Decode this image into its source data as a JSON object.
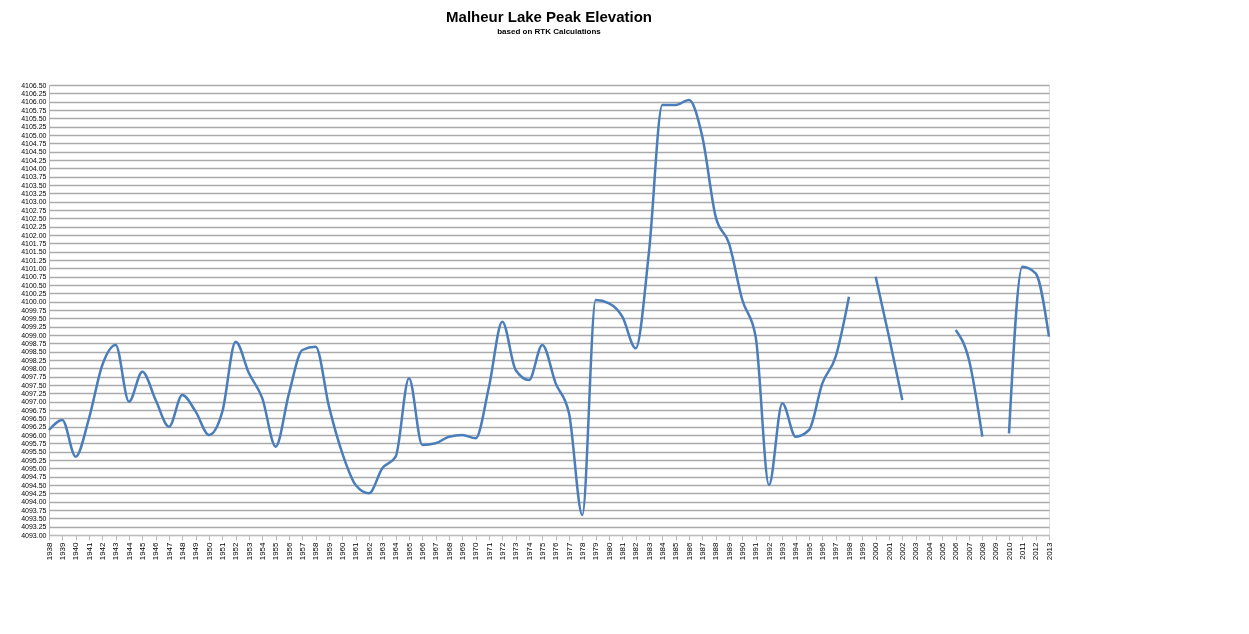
{
  "chart_data": {
    "type": "line",
    "title": "Malheur Lake Peak Elevation",
    "subtitle": "based on RTK Calculations",
    "categories": [
      "1938",
      "1939",
      "1940",
      "1941",
      "1942",
      "1943",
      "1944",
      "1945",
      "1946",
      "1947",
      "1948",
      "1949",
      "1950",
      "1951",
      "1952",
      "1953",
      "1954",
      "1955",
      "1956",
      "1957",
      "1958",
      "1959",
      "1960",
      "1961",
      "1962",
      "1963",
      "1964",
      "1965",
      "1966",
      "1967",
      "1968",
      "1969",
      "1970",
      "1971",
      "1972",
      "1973",
      "1974",
      "1975",
      "1976",
      "1977",
      "1978",
      "1979",
      "1980",
      "1981",
      "1982",
      "1983",
      "1984",
      "1985",
      "1986",
      "1987",
      "1988",
      "1989",
      "1990",
      "1991",
      "1992",
      "1993",
      "1994",
      "1995",
      "1996",
      "1997",
      "1998",
      "1999",
      "2000",
      "2001",
      "2002",
      "2003",
      "2004",
      "2005",
      "2006",
      "2007",
      "2008",
      "2009",
      "2010",
      "2011",
      "2012",
      "2013"
    ],
    "series": [
      {
        "color": "#4a7ebb",
        "values": [
          4096.15,
          4096.45,
          4095.35,
          4096.5,
          4098.1,
          4098.7,
          4097.0,
          4097.9,
          4097.05,
          4096.25,
          4097.2,
          4096.7,
          4096.0,
          4096.7,
          4098.8,
          4097.85,
          4097.1,
          4095.65,
          4097.25,
          4098.55,
          4098.65,
          4096.85,
          4095.45,
          4094.5,
          4094.25,
          4095.0,
          4095.35,
          4097.7,
          4095.7,
          4095.75,
          4095.95,
          4096.0,
          4095.9,
          4097.45,
          4099.4,
          4097.95,
          4097.65,
          4098.7,
          4097.55,
          4096.65,
          4093.6,
          4100.05,
          4099.95,
          4099.55,
          4098.6,
          4101.5,
          4105.9,
          4105.9,
          4106.05,
          4104.95,
          4102.55,
          4101.75,
          4100.05,
          4098.95,
          4094.5,
          4096.95,
          4095.95,
          4096.15,
          4097.55,
          4098.35,
          4100.15,
          null,
          4100.75,
          4098.95,
          4097.05,
          null,
          null,
          null,
          4099.15,
          4098.25,
          4095.95,
          null,
          4096.05,
          4101.05,
          4100.85,
          4098.95
        ]
      }
    ],
    "ylim": [
      4093.0,
      4106.5
    ],
    "yticks": [
      {
        "value": 4093.0,
        "label": "4093.00"
      },
      {
        "value": 4093.25,
        "label": "4093.25"
      },
      {
        "value": 4093.5,
        "label": "4093.50"
      },
      {
        "value": 4093.75,
        "label": "4093.75"
      },
      {
        "value": 4094.0,
        "label": "4094.00"
      },
      {
        "value": 4094.25,
        "label": "4094.25"
      },
      {
        "value": 4094.5,
        "label": "4094.50"
      },
      {
        "value": 4094.75,
        "label": "4094.75"
      },
      {
        "value": 4095.0,
        "label": "4095.00"
      },
      {
        "value": 4095.25,
        "label": "4095.25"
      },
      {
        "value": 4095.5,
        "label": "4095.50"
      },
      {
        "value": 4095.75,
        "label": "4095.75"
      },
      {
        "value": 4096.0,
        "label": "4096.00"
      },
      {
        "value": 4096.25,
        "label": "4096.25"
      },
      {
        "value": 4096.5,
        "label": "4096.50"
      },
      {
        "value": 4096.75,
        "label": "4096.75"
      },
      {
        "value": 4097.0,
        "label": "4097.00"
      },
      {
        "value": 4097.25,
        "label": "4097.25"
      },
      {
        "value": 4097.5,
        "label": "4097.50"
      },
      {
        "value": 4097.75,
        "label": "4097.75"
      },
      {
        "value": 4098.0,
        "label": "4098.00"
      },
      {
        "value": 4098.25,
        "label": "4098.25"
      },
      {
        "value": 4098.5,
        "label": "4098.50"
      },
      {
        "value": 4098.75,
        "label": "4098.75"
      },
      {
        "value": 4099.0,
        "label": "4099.00"
      },
      {
        "value": 4099.25,
        "label": "4099.25"
      },
      {
        "value": 4099.5,
        "label": "4099.50"
      },
      {
        "value": 4099.75,
        "label": "4099.75"
      },
      {
        "value": 4100.0,
        "label": "4100.00"
      },
      {
        "value": 4100.25,
        "label": "4100.25"
      },
      {
        "value": 4100.5,
        "label": "4100.50"
      },
      {
        "value": 4100.75,
        "label": "4100.75"
      },
      {
        "value": 4101.0,
        "label": "4101.00"
      },
      {
        "value": 4101.25,
        "label": "4101.25"
      },
      {
        "value": 4101.5,
        "label": "4101.50"
      },
      {
        "value": 4101.75,
        "label": "4101.75"
      },
      {
        "value": 4102.0,
        "label": "4102.00"
      },
      {
        "value": 4102.25,
        "label": "4102.25"
      },
      {
        "value": 4102.5,
        "label": "4102.50"
      },
      {
        "value": 4102.75,
        "label": "4102.75"
      },
      {
        "value": 4103.0,
        "label": "4103.00"
      },
      {
        "value": 4103.25,
        "label": "4103.25"
      },
      {
        "value": 4103.5,
        "label": "4103.50"
      },
      {
        "value": 4103.75,
        "label": "4103.75"
      },
      {
        "value": 4104.0,
        "label": "4104.00"
      },
      {
        "value": 4104.25,
        "label": "4104.25"
      },
      {
        "value": 4104.5,
        "label": "4104.50"
      },
      {
        "value": 4104.75,
        "label": "4104.75"
      },
      {
        "value": 4105.0,
        "label": "4105.00"
      },
      {
        "value": 4105.25,
        "label": "4105.25"
      },
      {
        "value": 4105.5,
        "label": "4105.50"
      },
      {
        "value": 4105.75,
        "label": "4105.75"
      },
      {
        "value": 4106.0,
        "label": "4106.00"
      },
      {
        "value": 4106.25,
        "label": "4106.25"
      },
      {
        "value": 4106.5,
        "label": "4106.50"
      }
    ],
    "grid": "y",
    "marker": "none",
    "line_style": "solid"
  }
}
